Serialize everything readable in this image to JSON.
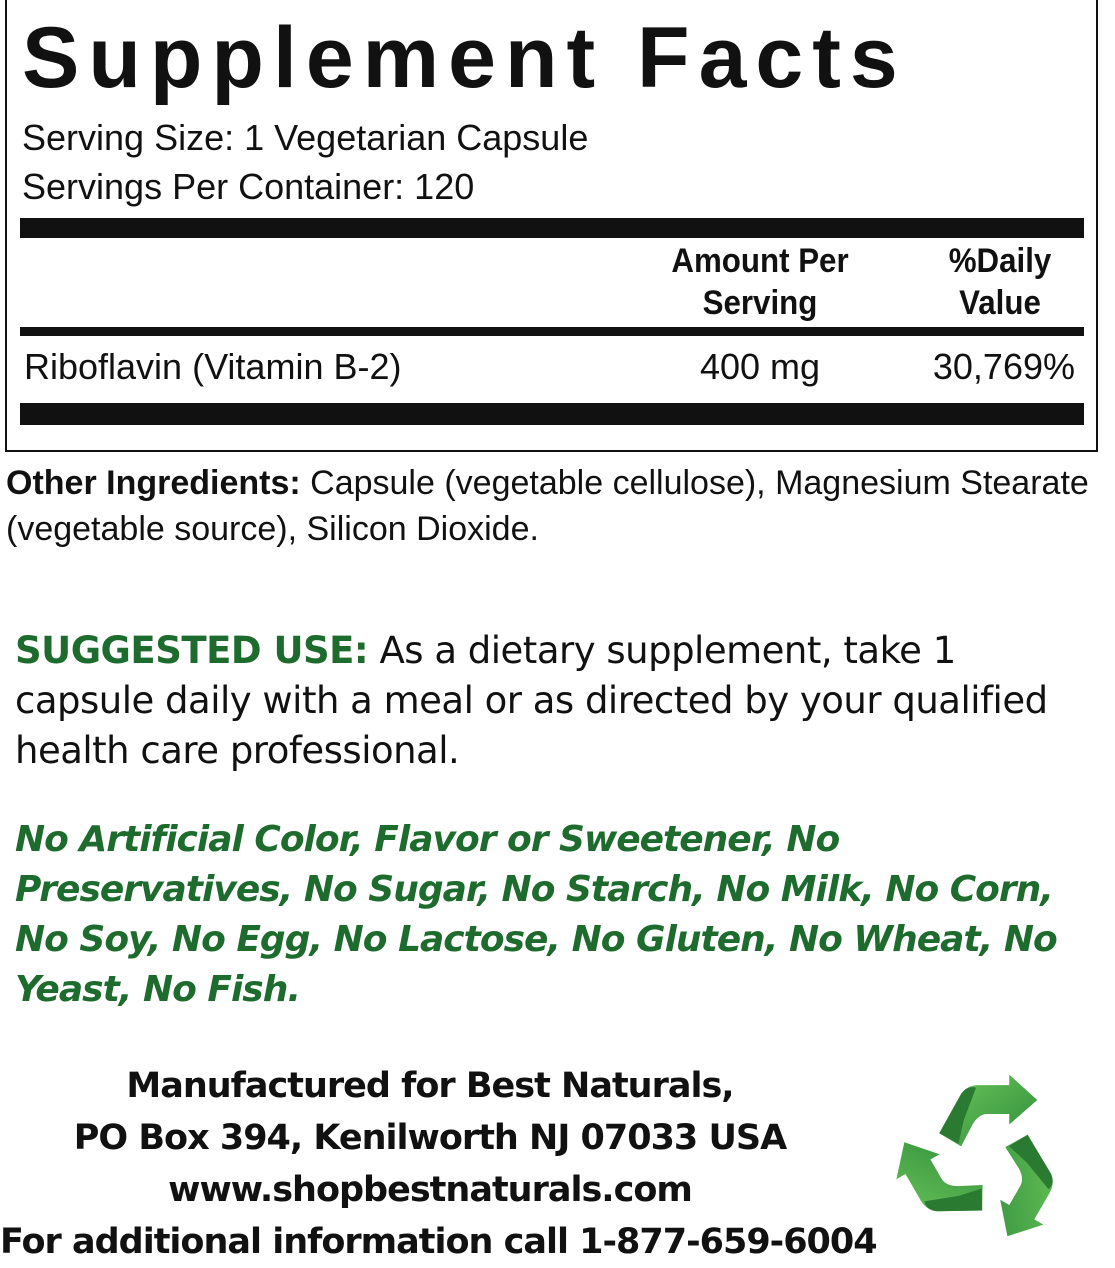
{
  "facts": {
    "title": "Supplement Facts",
    "serving_size": "Serving Size: 1 Vegetarian Capsule",
    "servings_per_container": "Servings Per Container: 120",
    "col_amount_line1": "Amount Per",
    "col_amount_line2": "Serving",
    "col_dv_line1": "%Daily",
    "col_dv_line2": "Value",
    "rows": [
      {
        "name": "Riboflavin (Vitamin B-2)",
        "amount": "400 mg",
        "dv": "30,769%"
      }
    ]
  },
  "other_ingredients": {
    "label": "Other Ingredients:",
    "text": " Capsule (vegetable cellulose), Magnesium Stearate (vegetable source), Silicon Dioxide."
  },
  "suggested_use": {
    "label": "SUGGESTED USE:",
    "text": " As a dietary supplement, take 1 capsule daily with a meal or as directed by your qualified health care professional."
  },
  "free_from": "No Artificial Color, Flavor or Sweetener, No Preservatives, No Sugar, No Starch, No Milk, No Corn, No Soy, No Egg, No Lactose, No Gluten, No Wheat, No Yeast, No Fish.",
  "footer": {
    "line1": "Manufactured for Best Naturals,",
    "line2": "PO Box 394, Kenilworth NJ 07033 USA",
    "line3": "www.shopbestnaturals.com",
    "line4": "For additional information call 1-877-659-6004"
  },
  "colors": {
    "accent_green": "#1e6b2e",
    "recycle_green": "#3fa63f"
  },
  "icons": {
    "recycle": "recycle-icon"
  }
}
